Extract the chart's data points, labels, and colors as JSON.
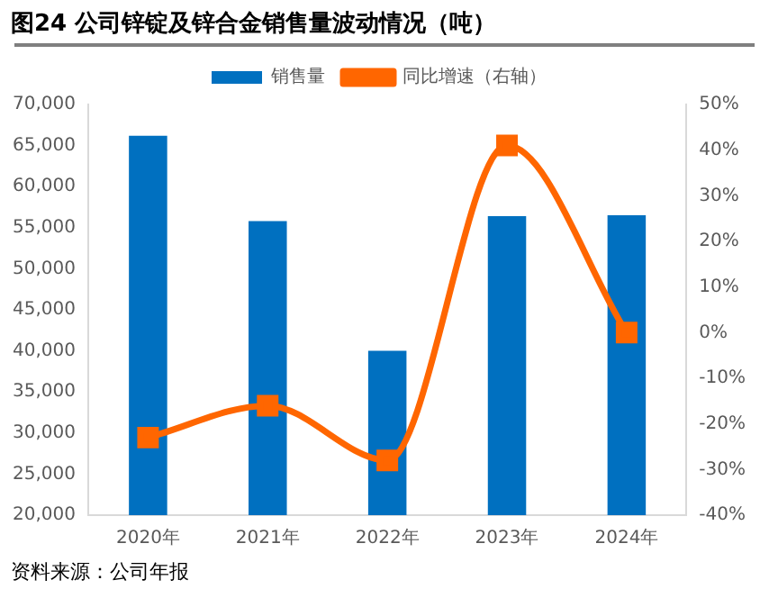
{
  "chart_data": {
    "type": "bar",
    "title": "图24 公司锌锭及锌合金销售量波动情况（吨）",
    "categories": [
      "2020年",
      "2021年",
      "2022年",
      "2023年",
      "2024年"
    ],
    "series": [
      {
        "name": "销售量",
        "color": "#0070c0",
        "values": [
          66200,
          55800,
          40000,
          56400,
          56500
        ]
      },
      {
        "name": "同比增速（右轴）",
        "type": "line",
        "axis": "y2",
        "color": "#ff6600",
        "marker": "square",
        "values": [
          -23,
          -16,
          -28,
          41,
          0
        ]
      }
    ],
    "ylim": [
      20000,
      70000
    ],
    "yticks": [
      {
        "value": 20000,
        "label": "20,000"
      },
      {
        "value": 25000,
        "label": "25,000"
      },
      {
        "value": 30000,
        "label": "30,000"
      },
      {
        "value": 35000,
        "label": "35,000"
      },
      {
        "value": 40000,
        "label": "40,000"
      },
      {
        "value": 45000,
        "label": "45,000"
      },
      {
        "value": 50000,
        "label": "50,000"
      },
      {
        "value": 55000,
        "label": "55,000"
      },
      {
        "value": 60000,
        "label": "60,000"
      },
      {
        "value": 65000,
        "label": "65,000"
      },
      {
        "value": 70000,
        "label": "70,000"
      }
    ],
    "y2lim": [
      -40,
      50
    ],
    "y2ticks": [
      {
        "value": -40,
        "label": "-40%"
      },
      {
        "value": -30,
        "label": "-30%"
      },
      {
        "value": -20,
        "label": "-20%"
      },
      {
        "value": -10,
        "label": "-10%"
      },
      {
        "value": 0,
        "label": "0%"
      },
      {
        "value": 10,
        "label": "10%"
      },
      {
        "value": 20,
        "label": "20%"
      },
      {
        "value": 30,
        "label": "30%"
      },
      {
        "value": 40,
        "label": "40%"
      },
      {
        "value": 50,
        "label": "50%"
      }
    ],
    "grid": false,
    "legend": "top",
    "annotations": [
      "资料来源：公司年报"
    ]
  }
}
